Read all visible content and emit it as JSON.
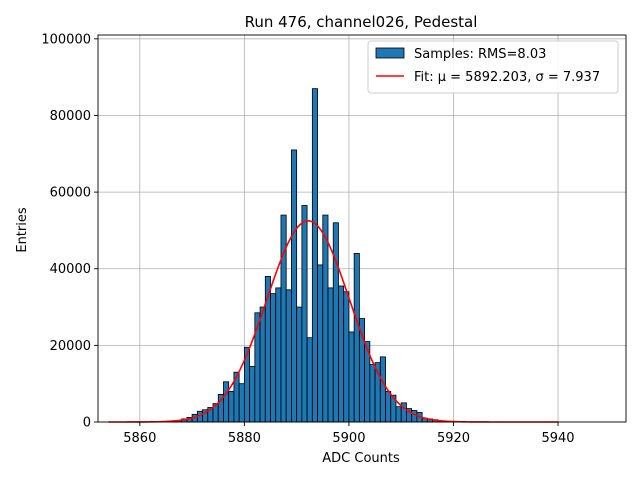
{
  "chart_data": {
    "type": "bar",
    "title": "Run 476, channel026, Pedestal",
    "xlabel": "ADC Counts",
    "ylabel": "Entries",
    "xlim": [
      5852,
      5953
    ],
    "ylim": [
      0,
      101000
    ],
    "xticks": [
      5860,
      5880,
      5900,
      5920,
      5940
    ],
    "yticks": [
      0,
      20000,
      40000,
      60000,
      80000,
      100000
    ],
    "grid": true,
    "legend_position": "top-right",
    "histogram": {
      "name": "Samples: RMS=8.03",
      "color": "#1f77b4",
      "edgecolor": "#000000",
      "bin_width": 1,
      "bin_starts": [
        5866,
        5867,
        5868,
        5869,
        5870,
        5871,
        5872,
        5873,
        5874,
        5875,
        5876,
        5877,
        5878,
        5879,
        5880,
        5881,
        5882,
        5883,
        5884,
        5885,
        5886,
        5887,
        5888,
        5889,
        5890,
        5891,
        5892,
        5893,
        5894,
        5895,
        5896,
        5897,
        5898,
        5899,
        5900,
        5901,
        5902,
        5903,
        5904,
        5905,
        5906,
        5907,
        5908,
        5909,
        5910,
        5911,
        5912,
        5913,
        5914,
        5915,
        5916,
        5917,
        5918
      ],
      "counts": [
        200,
        400,
        800,
        1200,
        2000,
        2800,
        3200,
        3800,
        4800,
        7200,
        10500,
        8000,
        13000,
        10000,
        19500,
        14500,
        28500,
        30000,
        38000,
        33500,
        35000,
        54000,
        34500,
        71000,
        30000,
        56500,
        22000,
        87000,
        41000,
        54000,
        35000,
        52000,
        35500,
        34000,
        23500,
        44000,
        27000,
        21000,
        15000,
        15500,
        17000,
        8000,
        7000,
        4000,
        5000,
        3500,
        3000,
        2500,
        1000,
        800,
        600,
        300,
        100
      ]
    },
    "fit": {
      "name": "Fit: μ = 5892.203, σ = 7.937",
      "color": "#ff0000",
      "mu": 5892.203,
      "sigma": 7.937,
      "amplitude": 52500,
      "x_range": [
        5854,
        5940
      ]
    }
  }
}
